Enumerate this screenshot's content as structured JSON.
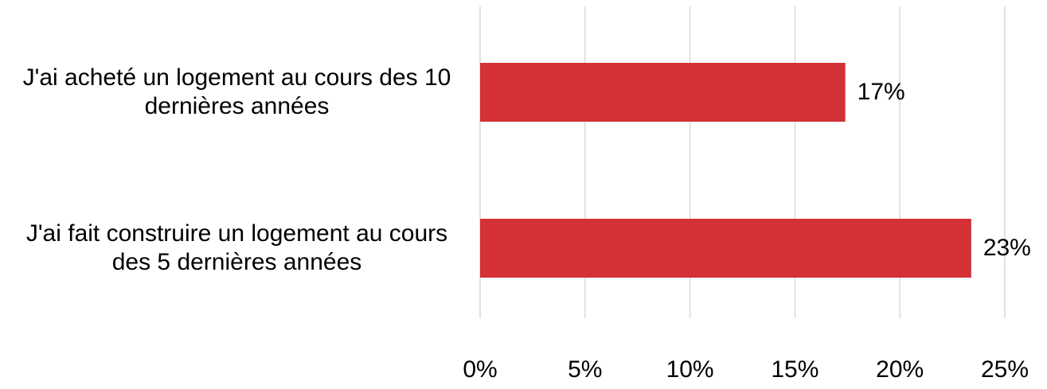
{
  "chart_data": {
    "type": "barh",
    "categories": [
      "J'ai acheté un logement au cours des 10 dernières années",
      "J'ai fait construire un logement au cours des 5 dernières années"
    ],
    "values": [
      17.4,
      23.4
    ],
    "value_labels": [
      "17%",
      "23%"
    ],
    "color": "#d33135",
    "xlim": [
      0,
      25
    ],
    "xticks": [
      {
        "value": 0,
        "label": "0%"
      },
      {
        "value": 5,
        "label": "5%"
      },
      {
        "value": 10,
        "label": "10%"
      },
      {
        "value": 15,
        "label": "15%"
      },
      {
        "value": 20,
        "label": "20%"
      },
      {
        "value": 25,
        "label": "25%"
      }
    ],
    "grid": true
  }
}
